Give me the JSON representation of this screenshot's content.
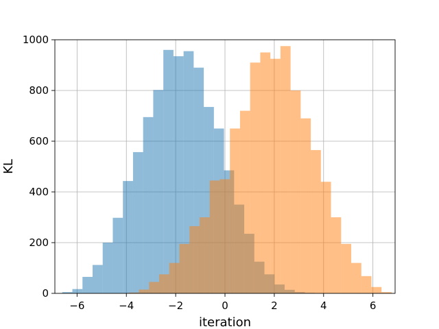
{
  "chart_data": {
    "type": "bar",
    "title": "",
    "xlabel": "iteration",
    "ylabel": "KL",
    "xlim": [
      -6.9,
      6.9
    ],
    "ylim": [
      0,
      1000
    ],
    "xticks": [
      -6,
      -4,
      -2,
      0,
      2,
      4,
      6
    ],
    "xtick_labels": [
      "−6",
      "−4",
      "−2",
      "0",
      "2",
      "4",
      "6"
    ],
    "yticks": [
      0,
      200,
      400,
      600,
      800,
      1000
    ],
    "ytick_labels": [
      "0",
      "200",
      "400",
      "600",
      "800",
      "1000"
    ],
    "grid": true,
    "bin_width": 0.41,
    "series": [
      {
        "color": "#1f77b4",
        "opacity": 0.5,
        "bin_starts": [
          -6.6,
          -6.19,
          -5.78,
          -5.37,
          -4.96,
          -4.55,
          -4.14,
          -3.73,
          -3.32,
          -2.91,
          -2.5,
          -2.09,
          -1.68,
          -1.27,
          -0.86,
          -0.45,
          -0.04,
          0.37,
          0.78,
          1.19,
          1.6,
          2.01,
          2.42,
          2.83,
          3.24
        ],
        "counts": [
          5,
          17,
          65,
          112,
          200,
          298,
          443,
          557,
          695,
          802,
          960,
          935,
          955,
          890,
          735,
          650,
          485,
          350,
          235,
          125,
          75,
          35,
          14,
          5,
          2
        ]
      },
      {
        "color": "#ff7f0e",
        "opacity": 0.5,
        "bin_starts": [
          -3.9,
          -3.49,
          -3.08,
          -2.67,
          -2.26,
          -1.85,
          -1.44,
          -1.03,
          -0.62,
          -0.21,
          0.2,
          0.61,
          1.02,
          1.43,
          1.84,
          2.25,
          2.66,
          3.07,
          3.48,
          3.89,
          4.3,
          4.71,
          5.12,
          5.53,
          5.94,
          6.35
        ],
        "counts": [
          3,
          15,
          45,
          75,
          120,
          195,
          265,
          300,
          445,
          450,
          650,
          720,
          910,
          950,
          925,
          975,
          800,
          690,
          565,
          440,
          300,
          195,
          120,
          68,
          25,
          5
        ]
      }
    ]
  }
}
